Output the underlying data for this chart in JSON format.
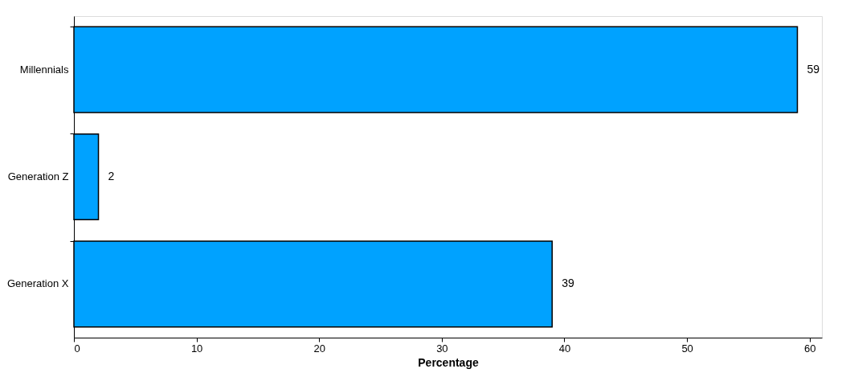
{
  "chart_data": {
    "type": "bar",
    "orientation": "horizontal",
    "xlabel": "Percentage",
    "categories": [
      "Millennials",
      "Generation Z",
      "Generation X"
    ],
    "values": [
      59,
      2,
      39
    ],
    "color": "#00a2ff",
    "xlim": [
      0,
      61
    ],
    "xticks": [
      0,
      10,
      20,
      30,
      40,
      50,
      60
    ],
    "data_labels": true
  }
}
